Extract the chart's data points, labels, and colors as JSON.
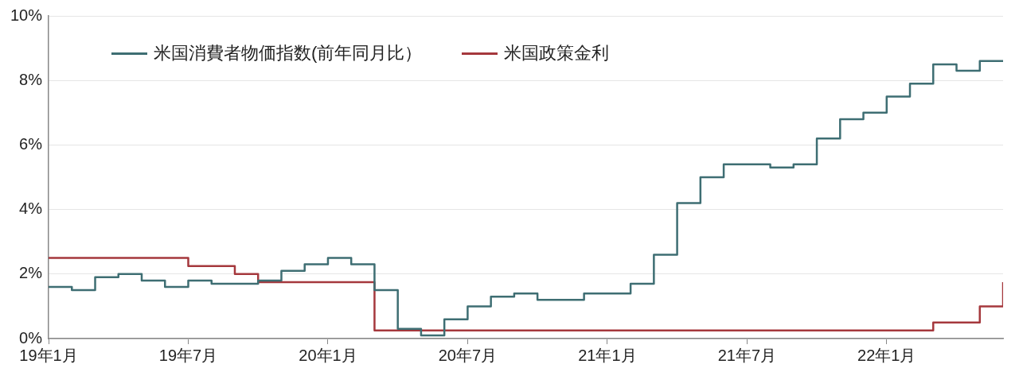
{
  "chart_data": {
    "type": "step",
    "categories": [
      "19年1月",
      null,
      null,
      null,
      null,
      null,
      "19年7月",
      null,
      null,
      null,
      null,
      null,
      "20年1月",
      null,
      null,
      null,
      null,
      null,
      "20年7月",
      null,
      null,
      null,
      null,
      null,
      "21年1月",
      null,
      null,
      null,
      null,
      null,
      "21年7月",
      null,
      null,
      null,
      null,
      null,
      "22年1月",
      null,
      null,
      null,
      null,
      null
    ],
    "series": [
      {
        "name": "米国消費者物価指数(前年同月比）",
        "color": "#3e6e73",
        "values": [
          1.6,
          1.5,
          1.9,
          2.0,
          1.8,
          1.6,
          1.8,
          1.7,
          1.7,
          1.8,
          2.1,
          2.3,
          2.5,
          2.3,
          1.5,
          0.3,
          0.1,
          0.6,
          1.0,
          1.3,
          1.4,
          1.2,
          1.2,
          1.4,
          1.4,
          1.7,
          2.6,
          4.2,
          5.0,
          5.4,
          5.4,
          5.3,
          5.4,
          6.2,
          6.8,
          7.0,
          7.5,
          7.9,
          8.5,
          8.3,
          8.6,
          8.6
        ]
      },
      {
        "name": "米国政策金利",
        "color": "#a5383d",
        "values": [
          2.5,
          2.5,
          2.5,
          2.5,
          2.5,
          2.5,
          2.25,
          2.25,
          2.0,
          1.75,
          1.75,
          1.75,
          1.75,
          1.75,
          0.25,
          0.25,
          0.25,
          0.25,
          0.25,
          0.25,
          0.25,
          0.25,
          0.25,
          0.25,
          0.25,
          0.25,
          0.25,
          0.25,
          0.25,
          0.25,
          0.25,
          0.25,
          0.25,
          0.25,
          0.25,
          0.25,
          0.25,
          0.25,
          0.5,
          0.5,
          1.0,
          1.75
        ]
      }
    ],
    "ylim": [
      0,
      10
    ],
    "yticks": [
      {
        "value": 0,
        "label": "0%"
      },
      {
        "value": 2,
        "label": "2%"
      },
      {
        "value": 4,
        "label": "4%"
      },
      {
        "value": 6,
        "label": "6%"
      },
      {
        "value": 8,
        "label": "8%"
      },
      {
        "value": 10,
        "label": "10%"
      }
    ],
    "grid": "y",
    "legend": "top left",
    "marker": "none",
    "line_style": "solid"
  }
}
